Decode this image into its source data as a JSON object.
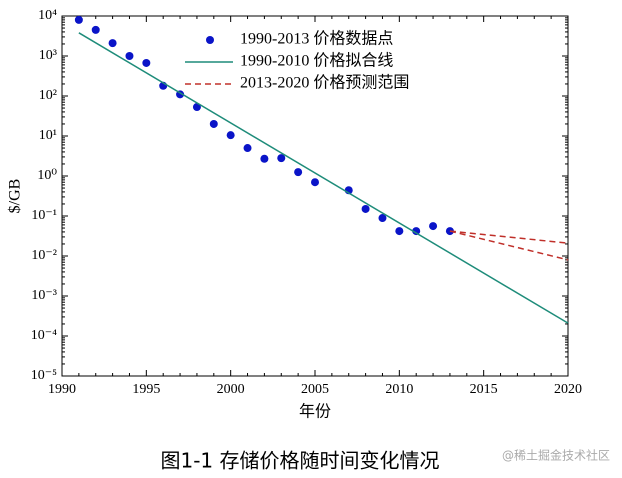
{
  "chart_data": {
    "type": "scatter",
    "y_label": "$/GB",
    "x_label": "年份",
    "caption": "图1-1 存储价格随时间变化情况",
    "watermark": "@稀土掘金技术社区",
    "log_y": true,
    "legend": "upper center",
    "xlim": [
      1990,
      2020
    ],
    "xticks": [
      1990,
      1995,
      2000,
      2005,
      2010,
      2015,
      2020
    ],
    "ylim": [
      1e-05,
      10000
    ],
    "yticks": [
      {
        "value": 1e-05,
        "label": "10⁻⁵"
      },
      {
        "value": 0.0001,
        "label": "10⁻⁴"
      },
      {
        "value": 0.001,
        "label": "10⁻³"
      },
      {
        "value": 0.01,
        "label": "10⁻²"
      },
      {
        "value": 0.1,
        "label": "10⁻¹"
      },
      {
        "value": 1,
        "label": "10⁰"
      },
      {
        "value": 10,
        "label": "10¹"
      },
      {
        "value": 100,
        "label": "10²"
      },
      {
        "value": 1000,
        "label": "10³"
      },
      {
        "value": 10000,
        "label": "10⁴"
      }
    ],
    "series": [
      {
        "name": "1990-2013 价格数据点",
        "type": "scatter",
        "color": "#0a14c8",
        "x": [
          1991,
          1992,
          1993,
          1994,
          1995,
          1996,
          1997,
          1998,
          1999,
          2000,
          2001,
          2002,
          2003,
          2004,
          2005,
          2007,
          2008,
          2009,
          2010,
          2011,
          2012,
          2013
        ],
        "values": [
          8000,
          4500,
          2100,
          1000,
          670,
          180,
          110,
          53,
          20,
          10.5,
          5,
          2.7,
          2.8,
          1.25,
          0.7,
          0.44,
          0.15,
          0.089,
          0.042,
          0.042,
          0.056,
          0.042
        ]
      },
      {
        "name": "1990-2010 价格拟合线",
        "type": "line",
        "color": "#1e8c7a",
        "x": [
          1991,
          2020
        ],
        "values": [
          3800,
          0.00021
        ]
      },
      {
        "name": "2013-2020 价格预测范围",
        "type": "range",
        "color": "#c0302a",
        "x": [
          2013,
          2020
        ],
        "upper": [
          0.042,
          0.021
        ],
        "lower": [
          0.042,
          0.008
        ]
      }
    ]
  }
}
